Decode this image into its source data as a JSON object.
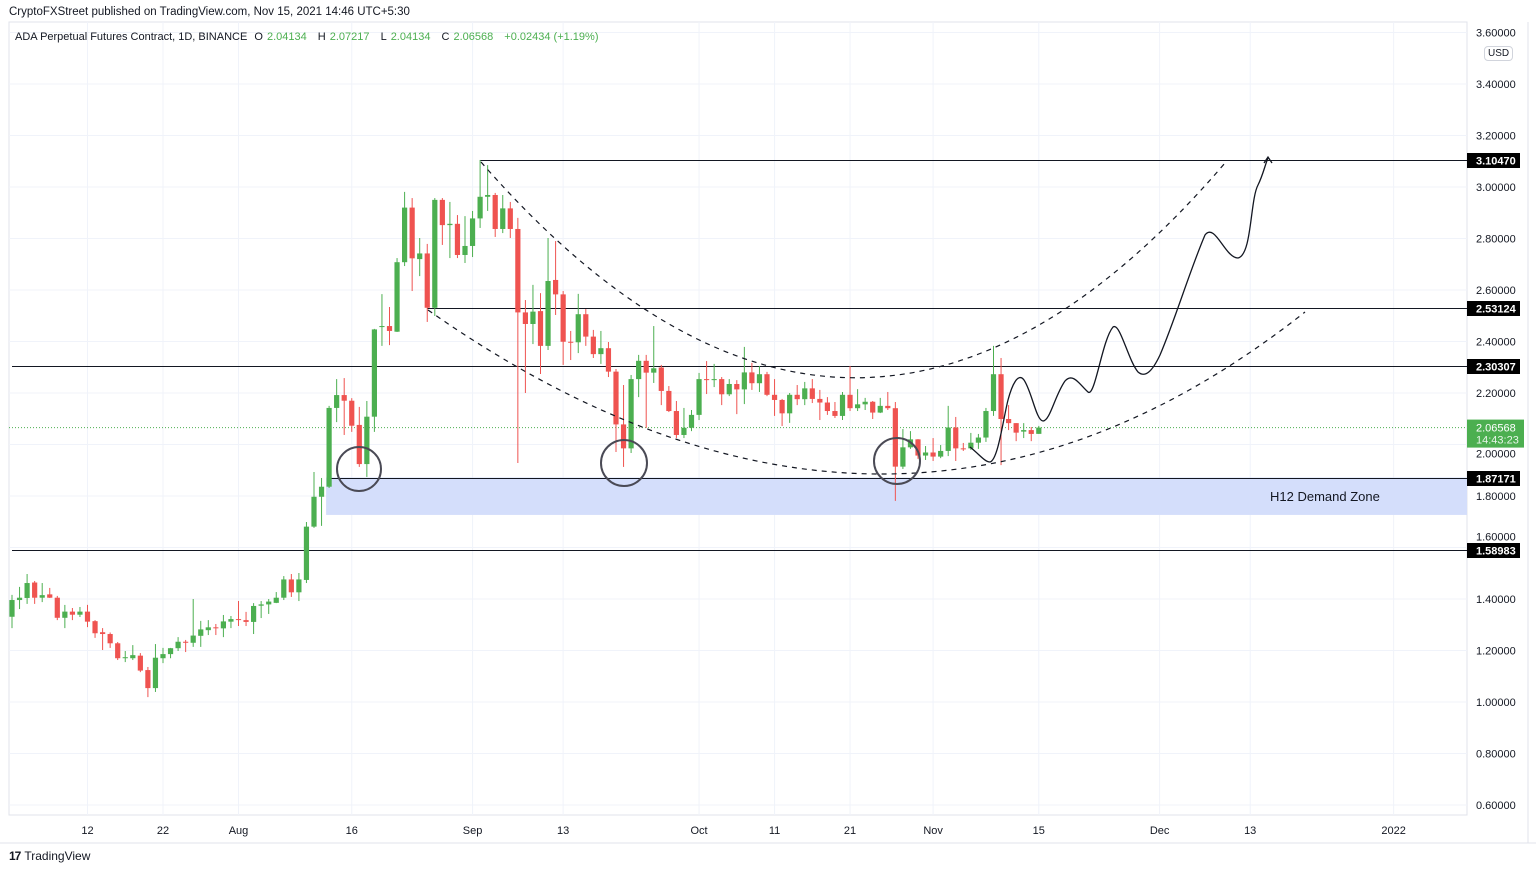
{
  "header": {
    "published": "CryptoFXStreet published on TradingView.com, Nov 15, 2021 14:46 UTC+5:30",
    "symbol": "ADA Perpetual Futures Contract, 1D, BINANCE",
    "o_label": "O",
    "o_value": "2.04134",
    "h_label": "H",
    "h_value": "2.07217",
    "l_label": "L",
    "l_value": "2.04134",
    "c_label": "C",
    "c_value": "2.06568",
    "change": "+0.02434 (+1.19%)"
  },
  "currency_badge": "USD",
  "footer": {
    "logo_text": "TradingView"
  },
  "colors": {
    "up": "#4caf50",
    "down": "#ef5350",
    "zone": "#d4defb",
    "level": "#131722",
    "grid": "#f0f3fa"
  },
  "chart_data": {
    "type": "candlestick",
    "interval": "1D",
    "y_ticks": [
      "3.60000",
      "3.40000",
      "3.20000",
      "3.00000",
      "2.80000",
      "2.60000",
      "2.40000",
      "2.20000",
      "2.00000",
      "1.80000",
      "1.60000",
      "1.40000",
      "1.20000",
      "1.00000",
      "0.80000",
      "0.60000"
    ],
    "x_ticks": [
      {
        "label": "12",
        "date": "2021-07-12"
      },
      {
        "label": "22",
        "date": "2021-07-22"
      },
      {
        "label": "Aug",
        "date": "2021-08-01"
      },
      {
        "label": "16",
        "date": "2021-08-16"
      },
      {
        "label": "Sep",
        "date": "2021-09-01"
      },
      {
        "label": "13",
        "date": "2021-09-13"
      },
      {
        "label": "Oct",
        "date": "2021-10-01"
      },
      {
        "label": "11",
        "date": "2021-10-11"
      },
      {
        "label": "21",
        "date": "2021-10-21"
      },
      {
        "label": "Nov",
        "date": "2021-11-01"
      },
      {
        "label": "15",
        "date": "2021-11-15"
      },
      {
        "label": "Dec",
        "date": "2021-12-01"
      },
      {
        "label": "13",
        "date": "2021-12-13"
      },
      {
        "label": "2022",
        "date": "2022-01-01"
      }
    ],
    "grid": true,
    "last_price": {
      "value": "2.06568",
      "countdown": "14:43:23"
    },
    "levels": [
      {
        "label": "3.10470",
        "value": 3.1047,
        "from": "2021-09-02"
      },
      {
        "label": "2.53124",
        "value": 2.53124,
        "from": "2021-08-26"
      },
      {
        "label": "2.30307",
        "value": 2.30307,
        "from": "2021-07-02"
      },
      {
        "label": "1.87171",
        "value": 1.87171,
        "from": "2021-08-13"
      },
      {
        "label": "1.58983",
        "value": 1.58983,
        "from": "2021-07-02"
      }
    ],
    "demand_zone": {
      "label": "H12 Demand Zone",
      "top": 1.87171,
      "bottom": 1.7265,
      "from": "2021-08-13"
    },
    "candles_columns": [
      "date",
      "open",
      "high",
      "low",
      "close"
    ],
    "candles": [
      [
        "2021-07-02",
        1.331,
        1.416,
        1.287,
        1.396
      ],
      [
        "2021-07-03",
        1.396,
        1.447,
        1.361,
        1.405
      ],
      [
        "2021-07-04",
        1.404,
        1.497,
        1.381,
        1.462
      ],
      [
        "2021-07-05",
        1.464,
        1.47,
        1.381,
        1.405
      ],
      [
        "2021-07-06",
        1.405,
        1.462,
        1.388,
        1.415
      ],
      [
        "2021-07-07",
        1.418,
        1.443,
        1.404,
        1.405
      ],
      [
        "2021-07-08",
        1.405,
        1.412,
        1.318,
        1.327
      ],
      [
        "2021-07-09",
        1.327,
        1.377,
        1.287,
        1.351
      ],
      [
        "2021-07-10",
        1.351,
        1.365,
        1.318,
        1.339
      ],
      [
        "2021-07-11",
        1.339,
        1.369,
        1.33,
        1.351
      ],
      [
        "2021-07-12",
        1.351,
        1.377,
        1.291,
        1.312
      ],
      [
        "2021-07-13",
        1.314,
        1.318,
        1.249,
        1.267
      ],
      [
        "2021-07-14",
        1.271,
        1.287,
        1.202,
        1.264
      ],
      [
        "2021-07-15",
        1.264,
        1.27,
        1.21,
        1.228
      ],
      [
        "2021-07-16",
        1.228,
        1.233,
        1.163,
        1.17
      ],
      [
        "2021-07-17",
        1.17,
        1.198,
        1.155,
        1.174
      ],
      [
        "2021-07-18",
        1.17,
        1.221,
        1.163,
        1.182
      ],
      [
        "2021-07-19",
        1.18,
        1.19,
        1.116,
        1.122
      ],
      [
        "2021-07-20",
        1.124,
        1.136,
        1.019,
        1.054
      ],
      [
        "2021-07-21",
        1.054,
        1.225,
        1.039,
        1.172
      ],
      [
        "2021-07-22",
        1.17,
        1.21,
        1.151,
        1.186
      ],
      [
        "2021-07-23",
        1.186,
        1.21,
        1.17,
        1.209
      ],
      [
        "2021-07-24",
        1.209,
        1.252,
        1.198,
        1.234
      ],
      [
        "2021-07-25",
        1.234,
        1.241,
        1.194,
        1.23
      ],
      [
        "2021-07-26",
        1.23,
        1.4,
        1.214,
        1.258
      ],
      [
        "2021-07-27",
        1.257,
        1.315,
        1.214,
        1.282
      ],
      [
        "2021-07-28",
        1.279,
        1.318,
        1.26,
        1.29
      ],
      [
        "2021-07-29",
        1.29,
        1.303,
        1.26,
        1.287
      ],
      [
        "2021-07-30",
        1.286,
        1.338,
        1.252,
        1.313
      ],
      [
        "2021-07-31",
        1.312,
        1.334,
        1.287,
        1.322
      ],
      [
        "2021-08-01",
        1.322,
        1.392,
        1.295,
        1.319
      ],
      [
        "2021-08-02",
        1.318,
        1.35,
        1.295,
        1.311
      ],
      [
        "2021-08-03",
        1.311,
        1.384,
        1.264,
        1.373
      ],
      [
        "2021-08-04",
        1.374,
        1.392,
        1.326,
        1.379
      ],
      [
        "2021-08-05",
        1.379,
        1.4,
        1.342,
        1.39
      ],
      [
        "2021-08-06",
        1.385,
        1.427,
        1.384,
        1.405
      ],
      [
        "2021-08-07",
        1.405,
        1.489,
        1.396,
        1.476
      ],
      [
        "2021-08-08",
        1.476,
        1.497,
        1.408,
        1.426
      ],
      [
        "2021-08-09",
        1.426,
        1.501,
        1.392,
        1.476
      ],
      [
        "2021-08-10",
        1.474,
        1.699,
        1.462,
        1.681
      ],
      [
        "2021-08-11",
        1.681,
        1.893,
        1.676,
        1.797
      ],
      [
        "2021-08-12",
        1.797,
        1.87,
        1.684,
        1.836
      ],
      [
        "2021-08-13",
        1.836,
        2.15,
        1.831,
        2.142
      ],
      [
        "2021-08-14",
        2.142,
        2.254,
        2.087,
        2.192
      ],
      [
        "2021-08-15",
        2.192,
        2.258,
        2.037,
        2.17
      ],
      [
        "2021-08-16",
        2.17,
        2.18,
        2.049,
        2.073
      ],
      [
        "2021-08-17",
        2.076,
        2.146,
        1.913,
        1.924
      ],
      [
        "2021-08-18",
        1.924,
        2.169,
        1.874,
        2.108
      ],
      [
        "2021-08-19",
        2.108,
        2.449,
        2.049,
        2.447
      ],
      [
        "2021-08-20",
        2.456,
        2.584,
        2.383,
        2.46
      ],
      [
        "2021-08-21",
        2.46,
        2.534,
        2.386,
        2.441
      ],
      [
        "2021-08-22",
        2.438,
        2.724,
        2.437,
        2.708
      ],
      [
        "2021-08-23",
        2.708,
        2.981,
        2.693,
        2.92
      ],
      [
        "2021-08-24",
        2.92,
        2.957,
        2.596,
        2.723
      ],
      [
        "2021-08-25",
        2.72,
        2.802,
        2.654,
        2.742
      ],
      [
        "2021-08-26",
        2.742,
        2.779,
        2.476,
        2.531
      ],
      [
        "2021-08-27",
        2.531,
        2.957,
        2.499,
        2.95
      ],
      [
        "2021-08-28",
        2.95,
        2.957,
        2.775,
        2.852
      ],
      [
        "2021-08-29",
        2.852,
        2.942,
        2.724,
        2.857
      ],
      [
        "2021-08-30",
        2.857,
        2.891,
        2.724,
        2.736
      ],
      [
        "2021-08-31",
        2.736,
        2.887,
        2.705,
        2.771
      ],
      [
        "2021-09-01",
        2.771,
        2.907,
        2.728,
        2.878
      ],
      [
        "2021-09-02",
        2.878,
        3.105,
        2.841,
        2.962
      ],
      [
        "2021-09-03",
        2.962,
        3.085,
        2.907,
        2.969
      ],
      [
        "2021-09-04",
        2.969,
        2.977,
        2.806,
        2.837
      ],
      [
        "2021-09-05",
        2.837,
        2.969,
        2.821,
        2.917
      ],
      [
        "2021-09-06",
        2.917,
        2.942,
        2.802,
        2.837
      ],
      [
        "2021-09-07",
        2.837,
        2.88,
        1.928,
        2.513
      ],
      [
        "2021-09-08",
        2.513,
        2.561,
        2.2,
        2.468
      ],
      [
        "2021-09-09",
        2.468,
        2.62,
        2.39,
        2.516
      ],
      [
        "2021-09-10",
        2.518,
        2.588,
        2.274,
        2.383
      ],
      [
        "2021-09-11",
        2.383,
        2.802,
        2.367,
        2.635
      ],
      [
        "2021-09-12",
        2.639,
        2.79,
        2.503,
        2.583
      ],
      [
        "2021-09-13",
        2.583,
        2.596,
        2.309,
        2.399
      ],
      [
        "2021-09-14",
        2.399,
        2.441,
        2.328,
        2.397
      ],
      [
        "2021-09-15",
        2.397,
        2.585,
        2.355,
        2.506
      ],
      [
        "2021-09-16",
        2.506,
        2.526,
        2.383,
        2.419
      ],
      [
        "2021-09-17",
        2.419,
        2.445,
        2.336,
        2.351
      ],
      [
        "2021-09-18",
        2.351,
        2.441,
        2.313,
        2.374
      ],
      [
        "2021-09-19",
        2.374,
        2.398,
        2.262,
        2.283
      ],
      [
        "2021-09-20",
        2.283,
        2.293,
        1.971,
        2.078
      ],
      [
        "2021-09-21",
        2.078,
        2.231,
        1.913,
        1.985
      ],
      [
        "2021-09-22",
        1.985,
        2.27,
        1.967,
        2.254
      ],
      [
        "2021-09-23",
        2.254,
        2.348,
        2.184,
        2.325
      ],
      [
        "2021-09-24",
        2.325,
        2.348,
        2.064,
        2.279
      ],
      [
        "2021-09-25",
        2.279,
        2.46,
        2.239,
        2.296
      ],
      [
        "2021-09-26",
        2.299,
        2.309,
        2.153,
        2.208
      ],
      [
        "2021-09-27",
        2.208,
        2.227,
        2.126,
        2.13
      ],
      [
        "2021-09-28",
        2.13,
        2.169,
        2.025,
        2.037
      ],
      [
        "2021-09-29",
        2.037,
        2.142,
        2.025,
        2.065
      ],
      [
        "2021-09-30",
        2.065,
        2.134,
        2.052,
        2.115
      ],
      [
        "2021-10-01",
        2.115,
        2.278,
        2.095,
        2.254
      ],
      [
        "2021-10-02",
        2.254,
        2.324,
        2.196,
        2.25
      ],
      [
        "2021-10-03",
        2.25,
        2.313,
        2.223,
        2.254
      ],
      [
        "2021-10-04",
        2.254,
        2.262,
        2.153,
        2.195
      ],
      [
        "2021-10-05",
        2.195,
        2.254,
        2.188,
        2.235
      ],
      [
        "2021-10-06",
        2.235,
        2.25,
        2.118,
        2.214
      ],
      [
        "2021-10-07",
        2.214,
        2.379,
        2.157,
        2.28
      ],
      [
        "2021-10-08",
        2.28,
        2.317,
        2.212,
        2.238
      ],
      [
        "2021-10-09",
        2.238,
        2.305,
        2.204,
        2.273
      ],
      [
        "2021-10-10",
        2.273,
        2.282,
        2.188,
        2.193
      ],
      [
        "2021-10-11",
        2.193,
        2.254,
        2.111,
        2.173
      ],
      [
        "2021-10-12",
        2.173,
        2.177,
        2.072,
        2.121
      ],
      [
        "2021-10-13",
        2.121,
        2.2,
        2.084,
        2.193
      ],
      [
        "2021-10-14",
        2.193,
        2.231,
        2.153,
        2.176
      ],
      [
        "2021-10-15",
        2.176,
        2.243,
        2.153,
        2.218
      ],
      [
        "2021-10-16",
        2.218,
        2.254,
        2.161,
        2.177
      ],
      [
        "2021-10-17",
        2.177,
        2.212,
        2.095,
        2.163
      ],
      [
        "2021-10-18",
        2.163,
        2.184,
        2.115,
        2.13
      ],
      [
        "2021-10-19",
        2.13,
        2.165,
        2.103,
        2.111
      ],
      [
        "2021-10-20",
        2.111,
        2.204,
        2.095,
        2.193
      ],
      [
        "2021-10-21",
        2.193,
        2.305,
        2.13,
        2.141
      ],
      [
        "2021-10-22",
        2.141,
        2.215,
        2.13,
        2.156
      ],
      [
        "2021-10-23",
        2.156,
        2.181,
        2.134,
        2.166
      ],
      [
        "2021-10-24",
        2.166,
        2.169,
        2.099,
        2.124
      ],
      [
        "2021-10-25",
        2.124,
        2.181,
        2.122,
        2.15
      ],
      [
        "2021-10-26",
        2.15,
        2.204,
        2.134,
        2.141
      ],
      [
        "2021-10-27",
        2.141,
        2.165,
        1.781,
        1.914
      ],
      [
        "2021-10-28",
        1.914,
        2.06,
        1.905,
        1.989
      ],
      [
        "2021-10-29",
        1.989,
        2.052,
        1.983,
        2.02
      ],
      [
        "2021-10-30",
        2.02,
        2.021,
        1.944,
        1.957
      ],
      [
        "2021-10-31",
        1.957,
        1.994,
        1.94,
        1.969
      ],
      [
        "2021-11-01",
        1.969,
        2.025,
        1.936,
        1.953
      ],
      [
        "2021-11-02",
        1.953,
        1.998,
        1.947,
        1.975
      ],
      [
        "2021-11-03",
        1.975,
        2.15,
        1.955,
        2.066
      ],
      [
        "2021-11-04",
        2.066,
        2.107,
        1.936,
        1.985
      ],
      [
        "2021-11-05",
        1.985,
        2.006,
        1.975,
        1.983
      ],
      [
        "2021-11-06",
        1.985,
        2.045,
        1.979,
        2.007
      ],
      [
        "2021-11-07",
        2.007,
        2.041,
        1.983,
        2.027
      ],
      [
        "2021-11-08",
        2.027,
        2.142,
        2.01,
        2.13
      ],
      [
        "2021-11-09",
        2.13,
        2.383,
        2.111,
        2.273
      ],
      [
        "2021-11-10",
        2.273,
        2.336,
        1.92,
        2.099
      ],
      [
        "2021-11-11",
        2.099,
        2.153,
        2.056,
        2.083
      ],
      [
        "2021-11-12",
        2.083,
        2.083,
        2.013,
        2.046
      ],
      [
        "2021-11-13",
        2.05,
        2.083,
        2.025,
        2.056
      ],
      [
        "2021-11-14",
        2.056,
        2.068,
        2.013,
        2.041
      ],
      [
        "2021-11-15",
        2.04134,
        2.07217,
        2.04134,
        2.06568
      ]
    ]
  }
}
